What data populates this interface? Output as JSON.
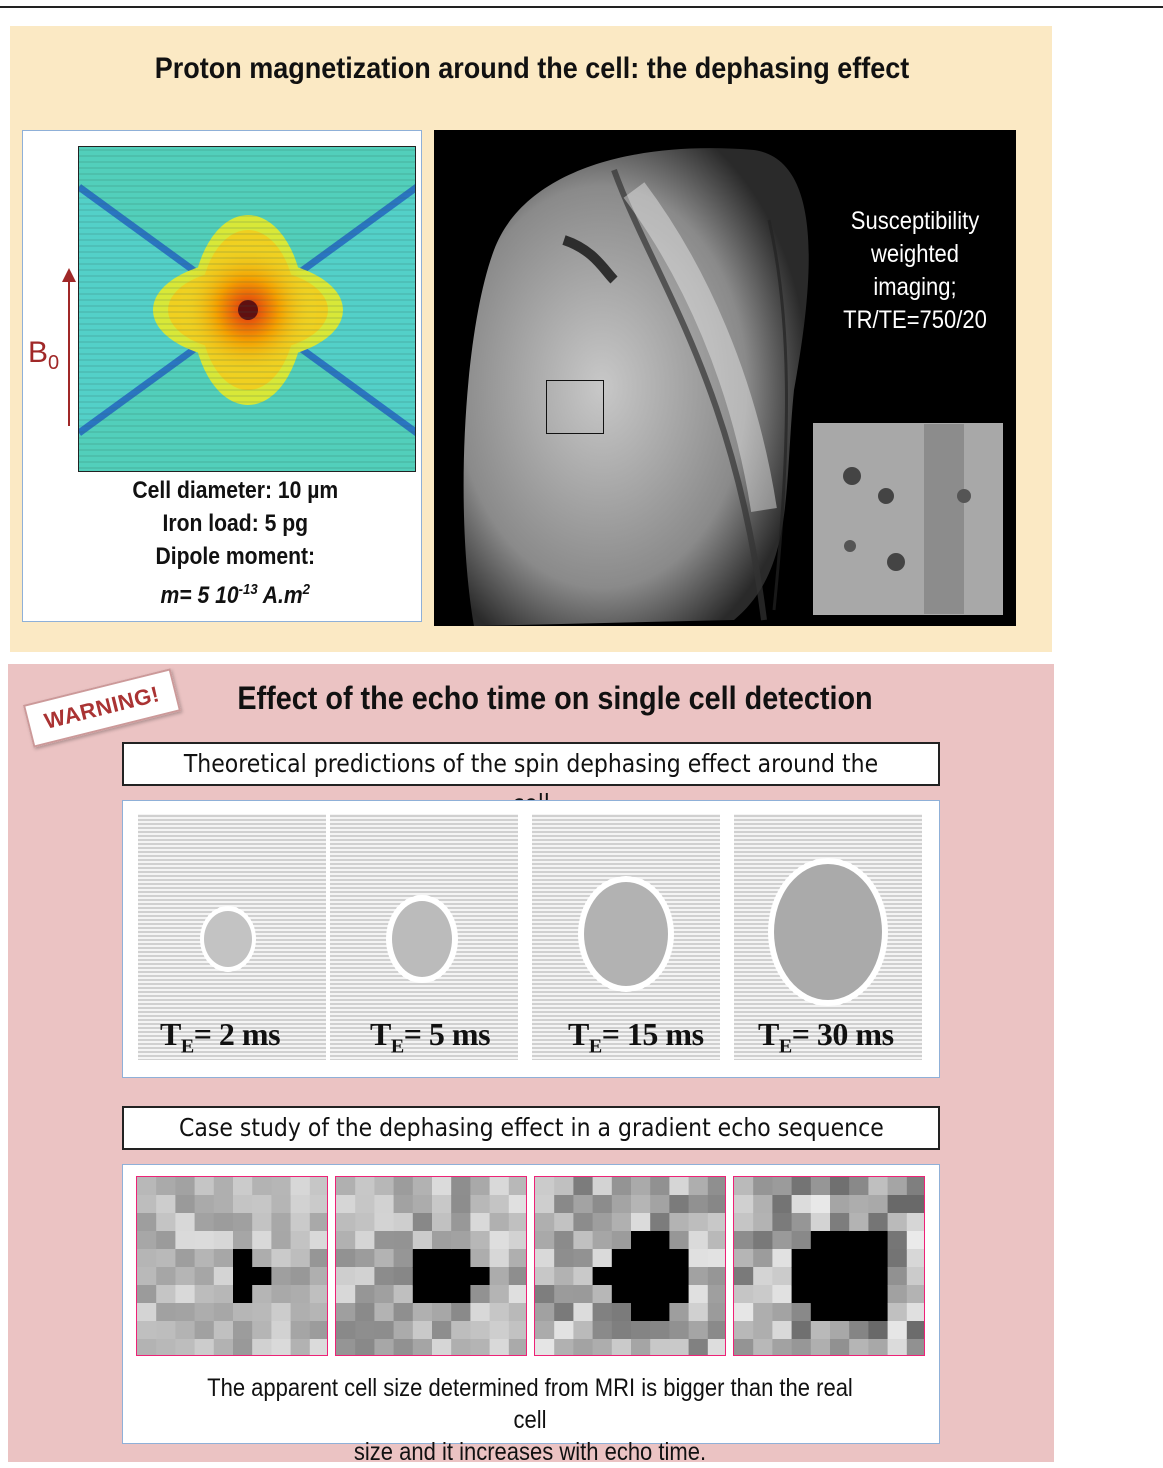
{
  "top_panel": {
    "title": "Proton magnetization around the cell: the dephasing effect",
    "field_label": "B",
    "field_label_sub": "0",
    "caption": {
      "line1": "Cell diameter: 10 µm",
      "line2": "Iron load: 5 pg",
      "line3": "Dipole moment:",
      "line4_prefix": "m= 5 10",
      "line4_exp": "-13",
      "line4_unit": " A.m",
      "line4_unit_exp": "2"
    },
    "mri_text": {
      "line1": "Susceptibility",
      "line2": "weighted",
      "line3": "imaging;",
      "line4": "TR/TE=750/20"
    }
  },
  "bottom_panel": {
    "warning": "WARNING!",
    "title": "Effect of the echo time on single cell detection",
    "theory_label": "Theoretical predictions of the spin dephasing effect around the cell",
    "simulations": [
      {
        "te_prefix": "T",
        "te_sub": "E",
        "te_value": "= 2 ms"
      },
      {
        "te_prefix": "T",
        "te_sub": "E",
        "te_value": "= 5 ms"
      },
      {
        "te_prefix": "T",
        "te_sub": "E",
        "te_value": "= 15 ms"
      },
      {
        "te_prefix": "T",
        "te_sub": "E",
        "te_value": "= 30 ms"
      }
    ],
    "case_label": "Case study of the dephasing effect in a gradient echo sequence",
    "conclusion_line1": "The apparent cell size determined from MRI is bigger than the real cell",
    "conclusion_line2": "size and it increases with echo time."
  },
  "colors": {
    "top_bg": "#fbe9c4",
    "bottom_bg": "#ebc3c3",
    "accent_red": "#a02828",
    "frame_blue": "#8fb0d8"
  }
}
